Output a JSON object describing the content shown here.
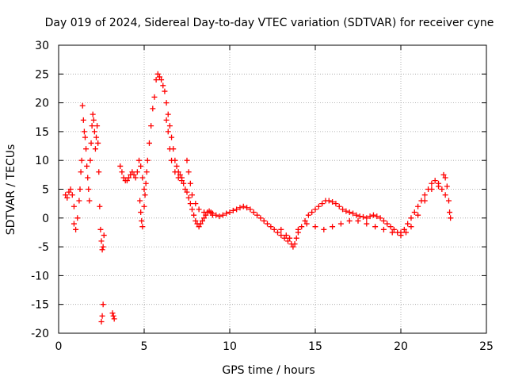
{
  "chart_data": {
    "type": "scatter",
    "title": "Day 019 of 2024, Sidereal Day-to-day VTEC variation (SDTVAR) for receiver cyne",
    "xlabel": "GPS time / hours",
    "ylabel": "SDTVAR / TECUs",
    "xlim": [
      0,
      25
    ],
    "ylim": [
      -20,
      30
    ],
    "xticks": [
      0,
      5,
      10,
      15,
      20,
      25
    ],
    "yticks": [
      -20,
      -15,
      -10,
      -5,
      0,
      5,
      10,
      15,
      20,
      25,
      30
    ],
    "grid": true,
    "marker": "+",
    "series": [
      {
        "name": "SDTVAR",
        "color": "#ff0000",
        "points": [
          [
            0.4,
            4.0
          ],
          [
            0.5,
            3.5
          ],
          [
            0.6,
            4.5
          ],
          [
            0.7,
            5.0
          ],
          [
            0.8,
            4.0
          ],
          [
            0.9,
            2.0
          ],
          [
            0.9,
            -1.0
          ],
          [
            1.0,
            -2.0
          ],
          [
            1.1,
            0.0
          ],
          [
            1.2,
            3.0
          ],
          [
            1.25,
            5.0
          ],
          [
            1.3,
            8.0
          ],
          [
            1.35,
            10.0
          ],
          [
            1.4,
            19.5
          ],
          [
            1.45,
            17.0
          ],
          [
            1.5,
            15.0
          ],
          [
            1.55,
            14.0
          ],
          [
            1.6,
            12.0
          ],
          [
            1.65,
            9.0
          ],
          [
            1.7,
            7.0
          ],
          [
            1.75,
            5.0
          ],
          [
            1.8,
            3.0
          ],
          [
            1.85,
            10.0
          ],
          [
            1.9,
            13.0
          ],
          [
            1.95,
            16.0
          ],
          [
            2.0,
            18.0
          ],
          [
            2.05,
            17.0
          ],
          [
            2.1,
            15.0
          ],
          [
            2.15,
            12.0
          ],
          [
            2.2,
            14.0
          ],
          [
            2.25,
            16.0
          ],
          [
            2.3,
            13.0
          ],
          [
            2.35,
            8.0
          ],
          [
            2.4,
            2.0
          ],
          [
            2.45,
            -2.0
          ],
          [
            2.5,
            -4.0
          ],
          [
            2.55,
            -5.5
          ],
          [
            2.6,
            -5.0
          ],
          [
            2.65,
            -3.0
          ],
          [
            2.5,
            -18.0
          ],
          [
            2.55,
            -17.0
          ],
          [
            2.6,
            -15.0
          ],
          [
            3.15,
            -16.5
          ],
          [
            3.2,
            -17.0
          ],
          [
            3.25,
            -17.5
          ],
          [
            3.6,
            9.0
          ],
          [
            3.7,
            8.0
          ],
          [
            3.8,
            7.0
          ],
          [
            3.9,
            6.5
          ],
          [
            4.0,
            6.5
          ],
          [
            4.1,
            7.0
          ],
          [
            4.2,
            7.5
          ],
          [
            4.3,
            8.0
          ],
          [
            4.4,
            7.5
          ],
          [
            4.5,
            7.0
          ],
          [
            4.6,
            8.0
          ],
          [
            4.7,
            10.0
          ],
          [
            4.8,
            9.0
          ],
          [
            4.9,
            7.0
          ],
          [
            5.0,
            5.0
          ],
          [
            4.75,
            3.0
          ],
          [
            4.8,
            1.0
          ],
          [
            4.85,
            -0.5
          ],
          [
            4.9,
            -1.5
          ],
          [
            5.0,
            2.0
          ],
          [
            5.05,
            4.0
          ],
          [
            5.1,
            6.0
          ],
          [
            5.15,
            8.0
          ],
          [
            5.2,
            10.0
          ],
          [
            5.3,
            13.0
          ],
          [
            5.4,
            16.0
          ],
          [
            5.5,
            19.0
          ],
          [
            5.6,
            21.0
          ],
          [
            5.7,
            24.0
          ],
          [
            5.8,
            25.0
          ],
          [
            5.9,
            24.5
          ],
          [
            6.0,
            24.0
          ],
          [
            6.1,
            23.0
          ],
          [
            6.2,
            22.0
          ],
          [
            6.3,
            20.0
          ],
          [
            6.4,
            18.0
          ],
          [
            6.5,
            16.0
          ],
          [
            6.6,
            14.0
          ],
          [
            6.7,
            12.0
          ],
          [
            6.8,
            10.0
          ],
          [
            6.9,
            9.0
          ],
          [
            7.0,
            8.0
          ],
          [
            7.1,
            7.5
          ],
          [
            7.2,
            7.0
          ],
          [
            7.3,
            6.0
          ],
          [
            7.4,
            5.0
          ],
          [
            7.5,
            4.5
          ],
          [
            7.6,
            3.5
          ],
          [
            7.7,
            2.5
          ],
          [
            7.8,
            1.5
          ],
          [
            7.9,
            0.5
          ],
          [
            8.0,
            -0.5
          ],
          [
            8.1,
            -1.0
          ],
          [
            8.2,
            -1.5
          ],
          [
            8.3,
            -1.0
          ],
          [
            8.4,
            -0.5
          ],
          [
            8.5,
            0.0
          ],
          [
            8.6,
            0.5
          ],
          [
            8.7,
            1.0
          ],
          [
            8.8,
            1.2
          ],
          [
            8.9,
            1.0
          ],
          [
            9.0,
            0.8
          ],
          [
            9.2,
            0.5
          ],
          [
            9.4,
            0.3
          ],
          [
            9.6,
            0.5
          ],
          [
            9.8,
            0.8
          ],
          [
            10.0,
            1.0
          ],
          [
            10.2,
            1.3
          ],
          [
            10.4,
            1.5
          ],
          [
            10.6,
            1.8
          ],
          [
            10.8,
            2.0
          ],
          [
            11.0,
            1.8
          ],
          [
            11.2,
            1.5
          ],
          [
            11.4,
            1.0
          ],
          [
            11.6,
            0.5
          ],
          [
            11.8,
            0.0
          ],
          [
            12.0,
            -0.5
          ],
          [
            12.2,
            -1.0
          ],
          [
            12.4,
            -1.5
          ],
          [
            12.6,
            -2.0
          ],
          [
            12.8,
            -2.5
          ],
          [
            13.0,
            -3.0
          ],
          [
            13.2,
            -3.5
          ],
          [
            13.4,
            -4.0
          ],
          [
            13.6,
            -4.5
          ],
          [
            13.7,
            -5.0
          ],
          [
            13.8,
            -4.5
          ],
          [
            13.9,
            -3.5
          ],
          [
            14.0,
            -2.5
          ],
          [
            14.2,
            -1.5
          ],
          [
            14.4,
            -0.5
          ],
          [
            14.6,
            0.5
          ],
          [
            14.8,
            1.0
          ],
          [
            15.0,
            1.5
          ],
          [
            15.2,
            2.0
          ],
          [
            15.4,
            2.5
          ],
          [
            15.6,
            3.0
          ],
          [
            15.8,
            3.0
          ],
          [
            16.0,
            2.8
          ],
          [
            16.2,
            2.5
          ],
          [
            16.4,
            2.0
          ],
          [
            16.6,
            1.5
          ],
          [
            16.8,
            1.2
          ],
          [
            17.0,
            1.0
          ],
          [
            17.2,
            0.8
          ],
          [
            17.4,
            0.5
          ],
          [
            17.6,
            0.3
          ],
          [
            17.8,
            0.2
          ],
          [
            18.0,
            0.0
          ],
          [
            18.2,
            0.3
          ],
          [
            18.4,
            0.5
          ],
          [
            18.6,
            0.3
          ],
          [
            18.8,
            0.0
          ],
          [
            19.0,
            -0.5
          ],
          [
            19.2,
            -1.0
          ],
          [
            19.4,
            -1.5
          ],
          [
            19.6,
            -2.0
          ],
          [
            19.8,
            -2.5
          ],
          [
            20.0,
            -2.5
          ],
          [
            20.2,
            -2.0
          ],
          [
            20.4,
            -1.0
          ],
          [
            20.6,
            0.0
          ],
          [
            20.8,
            1.0
          ],
          [
            21.0,
            2.0
          ],
          [
            21.2,
            3.0
          ],
          [
            21.4,
            4.0
          ],
          [
            21.6,
            5.0
          ],
          [
            21.8,
            6.0
          ],
          [
            22.0,
            6.5
          ],
          [
            22.2,
            6.0
          ],
          [
            22.4,
            5.0
          ],
          [
            22.5,
            7.5
          ],
          [
            22.6,
            7.0
          ],
          [
            22.7,
            5.5
          ],
          [
            22.8,
            3.0
          ],
          [
            22.85,
            1.0
          ],
          [
            22.9,
            0.0
          ],
          [
            7.5,
            10.0
          ],
          [
            7.6,
            8.0
          ],
          [
            7.7,
            6.0
          ],
          [
            7.8,
            4.0
          ],
          [
            8.0,
            2.5
          ],
          [
            8.2,
            1.5
          ],
          [
            8.5,
            1.0
          ],
          [
            9.0,
            0.5
          ],
          [
            6.3,
            17.0
          ],
          [
            6.4,
            15.0
          ],
          [
            6.5,
            12.0
          ],
          [
            6.6,
            10.0
          ],
          [
            6.8,
            8.0
          ],
          [
            7.0,
            7.0
          ],
          [
            7.2,
            6.5
          ],
          [
            13.0,
            -2.0
          ],
          [
            13.3,
            -3.0
          ],
          [
            13.5,
            -3.5
          ],
          [
            14.0,
            -2.0
          ],
          [
            14.5,
            -1.0
          ],
          [
            15.0,
            -1.5
          ],
          [
            15.5,
            -2.0
          ],
          [
            16.0,
            -1.5
          ],
          [
            16.5,
            -1.0
          ],
          [
            17.0,
            -0.5
          ],
          [
            17.5,
            -0.5
          ],
          [
            18.0,
            -1.0
          ],
          [
            18.5,
            -1.5
          ],
          [
            19.0,
            -2.0
          ],
          [
            19.5,
            -2.5
          ],
          [
            20.0,
            -3.0
          ],
          [
            20.3,
            -2.5
          ],
          [
            20.6,
            -1.5
          ],
          [
            21.0,
            0.5
          ],
          [
            21.4,
            3.0
          ],
          [
            21.8,
            5.0
          ],
          [
            22.2,
            5.5
          ],
          [
            22.6,
            4.0
          ]
        ]
      }
    ]
  }
}
